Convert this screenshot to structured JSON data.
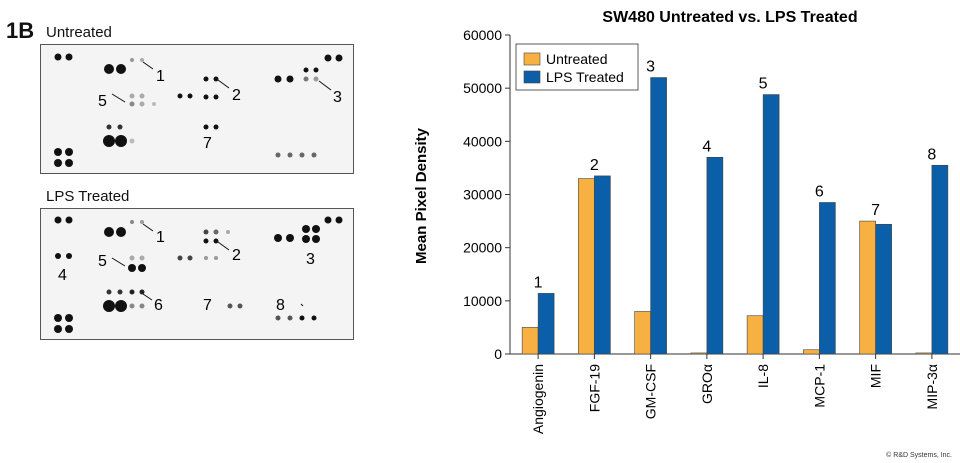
{
  "figure": {
    "label": "1B",
    "copyright": "© R&D Systems, Inc."
  },
  "blots": [
    {
      "title": "Untreated",
      "spot_labels": [
        "1",
        "2",
        "3",
        "5",
        "7"
      ]
    },
    {
      "title": "LPS Treated",
      "spot_labels": [
        "1",
        "2",
        "3",
        "4",
        "5",
        "6",
        "7",
        "8"
      ]
    }
  ],
  "chart_data": {
    "type": "bar",
    "title": "SW480 Untreated vs. LPS Treated",
    "xlabel": "",
    "ylabel": "Mean Pixel Density",
    "ylim": [
      0,
      60000
    ],
    "yticks": [
      0,
      10000,
      20000,
      30000,
      40000,
      50000,
      60000
    ],
    "grid": false,
    "legend_position": "top-left",
    "categories": [
      "Angiogenin",
      "FGF-19",
      "GM-CSF",
      "GROα",
      "IL-8",
      "MCP-1",
      "MIF",
      "MIP-3α"
    ],
    "bar_labels": [
      "1",
      "2",
      "3",
      "4",
      "5",
      "6",
      "7",
      "8"
    ],
    "series": [
      {
        "name": "Untreated",
        "color": "#f7b143",
        "values": [
          5000,
          33000,
          8000,
          200,
          7200,
          800,
          25000,
          200
        ]
      },
      {
        "name": "LPS Treated",
        "color": "#0b5ea8",
        "values": [
          11400,
          33500,
          52000,
          37000,
          48800,
          28500,
          24400,
          35500
        ]
      }
    ]
  }
}
